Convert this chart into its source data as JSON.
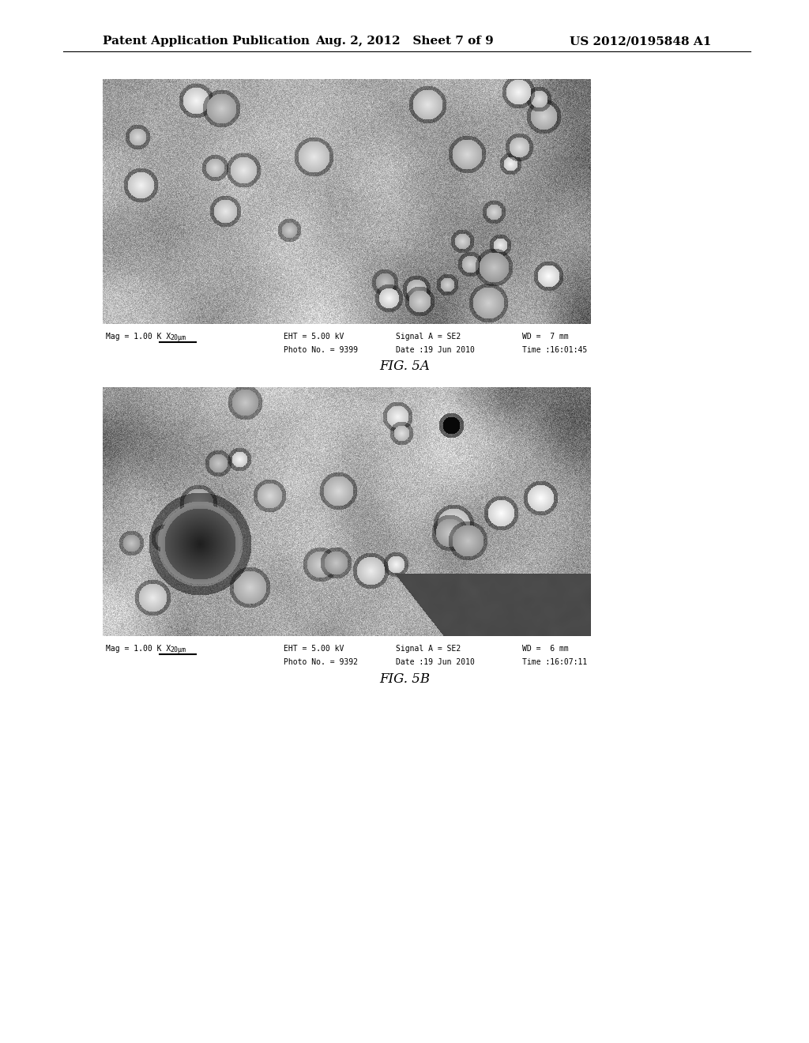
{
  "header_left": "Patent Application Publication",
  "header_center": "Aug. 2, 2012   Sheet 7 of 9",
  "header_right": "US 2012/0195848 A1",
  "fig5a_label": "FIG. 5A",
  "fig5b_label": "FIG. 5B",
  "background_color": "#ffffff",
  "header_fontsize": 11,
  "caption_fontsize": 7,
  "fig_label_fontsize": 12
}
